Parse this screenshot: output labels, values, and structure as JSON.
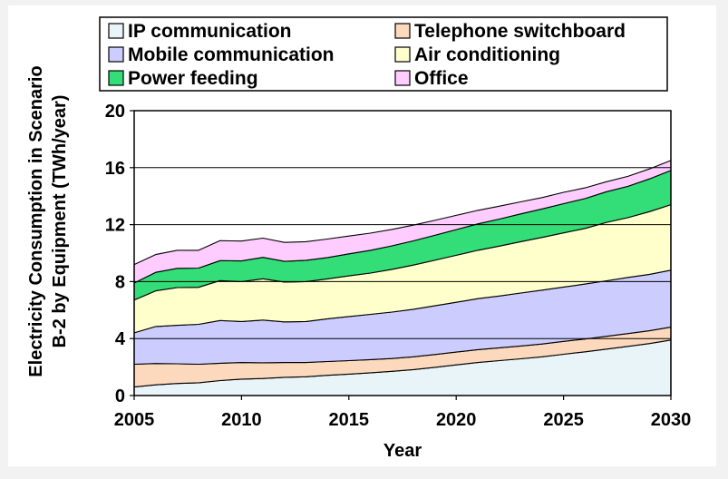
{
  "chart_data": {
    "type": "area",
    "stacked": true,
    "xlabel": "Year",
    "ylabel_lines": [
      "Electricity Consumption in Scenario",
      "B-2 by Equipment (TWh/year)"
    ],
    "xlim": [
      2005,
      2030
    ],
    "ylim": [
      0,
      20
    ],
    "x_ticks": [
      2005,
      2010,
      2015,
      2020,
      2025,
      2030
    ],
    "y_ticks": [
      0,
      4,
      8,
      12,
      16,
      20
    ],
    "grid": "horizontal",
    "legend_position": "top",
    "x": [
      2005,
      2006,
      2007,
      2008,
      2009,
      2010,
      2011,
      2012,
      2013,
      2014,
      2015,
      2016,
      2017,
      2018,
      2019,
      2020,
      2021,
      2022,
      2023,
      2024,
      2025,
      2026,
      2027,
      2028,
      2029,
      2030
    ],
    "series": [
      {
        "name": "IP communication",
        "color": "#e8f4f8",
        "values": [
          0.6,
          0.75,
          0.85,
          0.9,
          1.05,
          1.15,
          1.2,
          1.28,
          1.32,
          1.42,
          1.5,
          1.6,
          1.7,
          1.82,
          1.98,
          2.15,
          2.32,
          2.45,
          2.58,
          2.72,
          2.9,
          3.07,
          3.26,
          3.45,
          3.65,
          3.9
        ]
      },
      {
        "name": "Telephone switchboard",
        "color": "#fcd9bd",
        "values": [
          1.6,
          1.5,
          1.38,
          1.3,
          1.22,
          1.17,
          1.1,
          1.04,
          1.0,
          0.97,
          0.95,
          0.92,
          0.9,
          0.9,
          0.9,
          0.9,
          0.9,
          0.9,
          0.9,
          0.9,
          0.9,
          0.9,
          0.9,
          0.9,
          0.9,
          0.9
        ]
      },
      {
        "name": "Mobile communication",
        "color": "#ccccff",
        "values": [
          2.2,
          2.6,
          2.7,
          2.8,
          3.0,
          2.88,
          3.0,
          2.85,
          2.88,
          3.0,
          3.1,
          3.18,
          3.26,
          3.34,
          3.42,
          3.5,
          3.58,
          3.64,
          3.72,
          3.78,
          3.82,
          3.86,
          3.9,
          3.94,
          3.96,
          4.0
        ]
      },
      {
        "name": "Air conditioning",
        "color": "#ffffcc",
        "values": [
          2.3,
          2.5,
          2.65,
          2.6,
          2.8,
          2.8,
          2.9,
          2.8,
          2.8,
          2.8,
          2.85,
          2.9,
          3.0,
          3.1,
          3.2,
          3.3,
          3.4,
          3.5,
          3.6,
          3.7,
          3.8,
          3.9,
          4.1,
          4.2,
          4.4,
          4.6
        ]
      },
      {
        "name": "Power feeding",
        "color": "#33dd77",
        "values": [
          1.2,
          1.3,
          1.35,
          1.35,
          1.4,
          1.45,
          1.5,
          1.45,
          1.5,
          1.5,
          1.55,
          1.6,
          1.65,
          1.7,
          1.75,
          1.8,
          1.85,
          1.9,
          1.95,
          2.0,
          2.05,
          2.1,
          2.15,
          2.2,
          2.3,
          2.4
        ]
      },
      {
        "name": "Office",
        "color": "#ffccff",
        "values": [
          1.3,
          1.25,
          1.27,
          1.25,
          1.4,
          1.4,
          1.35,
          1.33,
          1.3,
          1.3,
          1.25,
          1.2,
          1.15,
          1.1,
          1.05,
          1.0,
          0.95,
          0.9,
          0.85,
          0.8,
          0.8,
          0.75,
          0.7,
          0.7,
          0.7,
          0.7
        ]
      }
    ]
  }
}
